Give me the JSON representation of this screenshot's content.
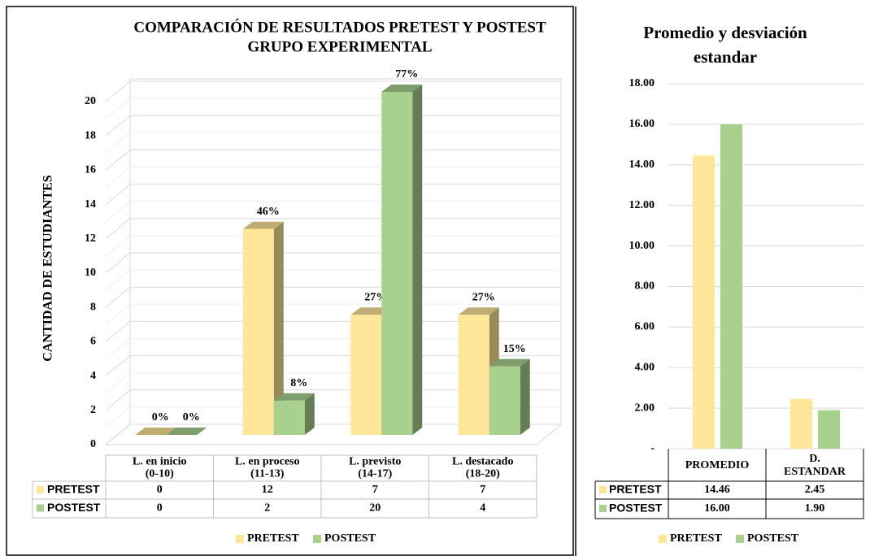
{
  "chart_data": [
    {
      "type": "bar3d",
      "title": "COMPARACIÓN DE RESULTADOS PRETEST Y POSTEST",
      "subtitle": "GRUPO EXPERIMENTAL",
      "y_label": "CANTIDAD DE ESTUDIANTES",
      "categories": [
        "L. en inicio\n(0-10)",
        "L. en proceso\n(11-13)",
        "L. previsto\n(14-17)",
        "L. destacado\n(18-20)"
      ],
      "series": [
        {
          "name": "PRETEST",
          "color": "#FFE699",
          "values": [
            0,
            12,
            7,
            7
          ],
          "percent_labels": [
            "0%",
            "46%",
            "27%",
            "27%"
          ]
        },
        {
          "name": "POSTEST",
          "color": "#A9D18E",
          "values": [
            0,
            2,
            20,
            4
          ],
          "percent_labels": [
            "0%",
            "8%",
            "77%",
            "15%"
          ]
        }
      ],
      "ylim": [
        0,
        20
      ],
      "yticks": [
        0,
        2,
        4,
        6,
        8,
        10,
        12,
        14,
        16,
        18,
        20
      ],
      "grid": true,
      "legend": "bottom"
    },
    {
      "type": "bar",
      "title": "Promedio y desviación\nestandar",
      "categories": [
        "PROMEDIO",
        "D.\nESTANDAR"
      ],
      "series": [
        {
          "name": "PRETEST",
          "color": "#FFE699",
          "values": [
            14.46,
            2.45
          ]
        },
        {
          "name": "POSTEST",
          "color": "#A9D18E",
          "values": [
            16.0,
            1.9
          ],
          "value_labels": [
            "16.00",
            "1.90"
          ]
        }
      ],
      "ylim": [
        0,
        18
      ],
      "yticks": [
        {
          "value": 0,
          "label": "-"
        },
        {
          "value": 2,
          "label": "2.00"
        },
        {
          "value": 4,
          "label": "4.00"
        },
        {
          "value": 6,
          "label": "6.00"
        },
        {
          "value": 8,
          "label": "8.00"
        },
        {
          "value": 10,
          "label": "10.00"
        },
        {
          "value": 12,
          "label": "12.00"
        },
        {
          "value": 14,
          "label": "14.00"
        },
        {
          "value": 16,
          "label": "16.00"
        },
        {
          "value": 18,
          "label": "18.00"
        }
      ],
      "grid": true,
      "legend": "bottom"
    }
  ]
}
